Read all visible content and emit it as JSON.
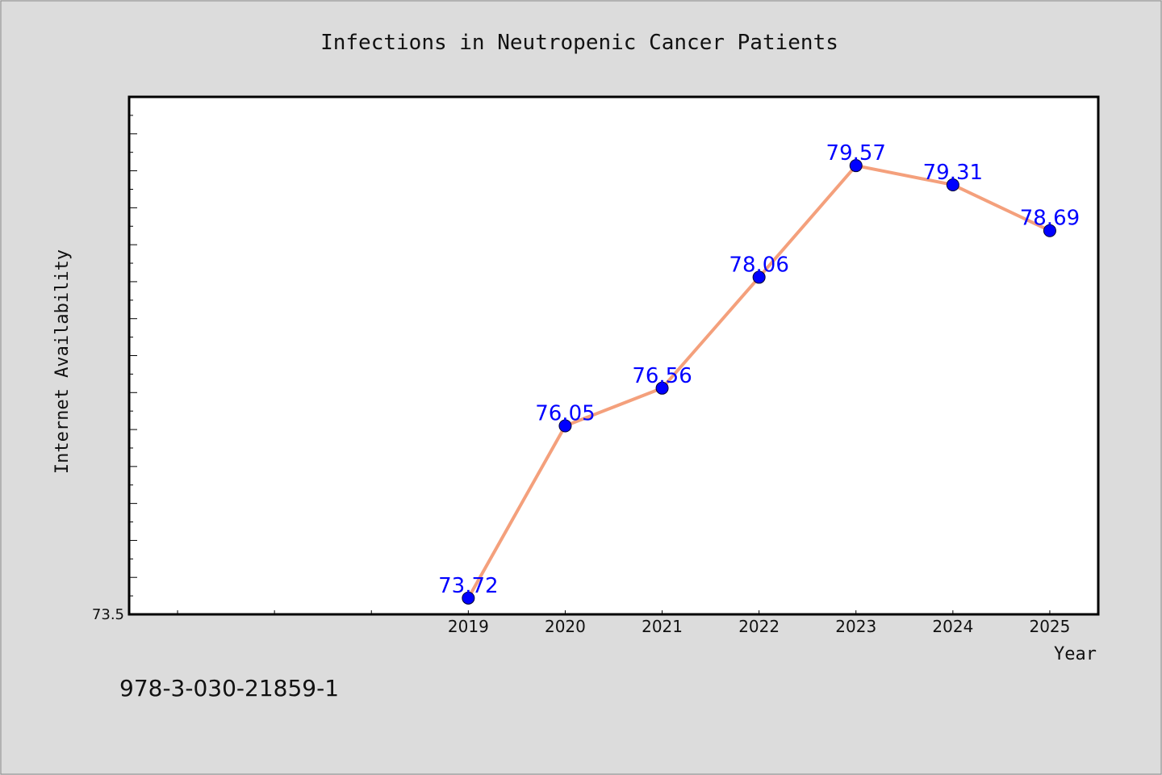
{
  "chart_data": {
    "type": "line",
    "title": "Infections in Neutropenic Cancer Patients",
    "xlabel": "Year",
    "ylabel": "Internet Availability",
    "categories": [
      "2019",
      "2020",
      "2021",
      "2022",
      "2023",
      "2024",
      "2025"
    ],
    "values": [
      73.72,
      76.05,
      76.56,
      78.06,
      79.57,
      79.31,
      78.69
    ],
    "value_labels": [
      "73.72",
      "76.05",
      "76.56",
      "78.06",
      "79.57",
      "79.31",
      "78.69"
    ],
    "xlim": [
      2015.5,
      2025.5
    ],
    "ylim": [
      73.5,
      80.5
    ],
    "ytick_labels": [
      "73.5"
    ],
    "grid": false,
    "line_color": "#f4a07c",
    "marker_color": "#0000ff",
    "label_color": "#0000ff"
  },
  "caption": "978-3-030-21859-1",
  "colors": {
    "background": "#dcdcdc",
    "plot_background": "#ffffff",
    "axis": "#000000"
  }
}
